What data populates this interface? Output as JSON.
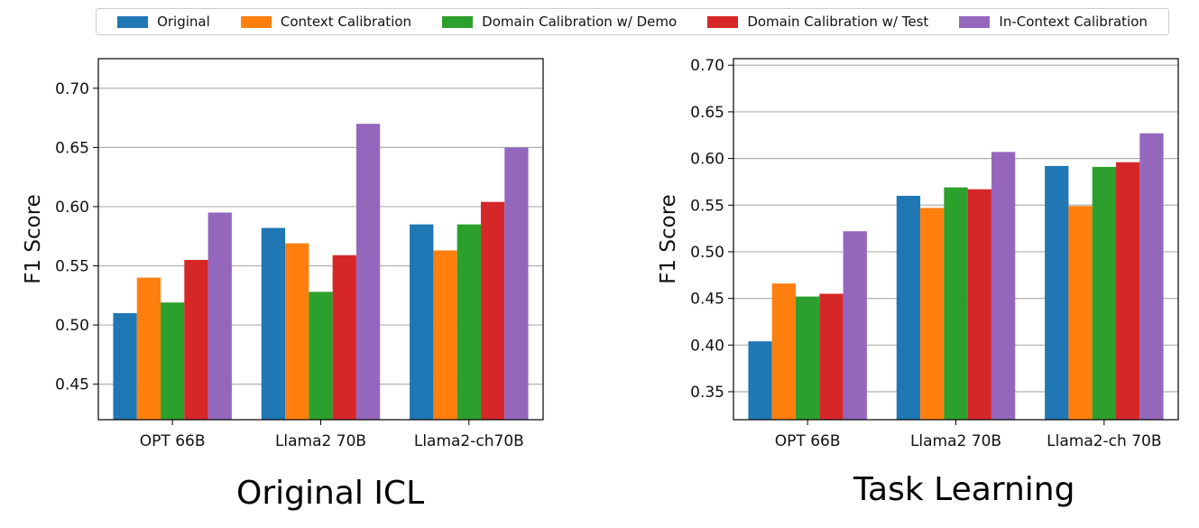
{
  "legend": {
    "items": [
      {
        "label": "Original",
        "color": "#1f77b4"
      },
      {
        "label": "Context Calibration",
        "color": "#ff7f0e"
      },
      {
        "label": "Domain Calibration w/ Demo",
        "color": "#2ca02c"
      },
      {
        "label": "Domain Calibration w/ Test",
        "color": "#d62728"
      },
      {
        "label": "In-Context Calibration",
        "color": "#9467bd"
      }
    ]
  },
  "captions": {
    "left": "Original ICL",
    "right": "Task Learning"
  },
  "chart_data": [
    {
      "type": "bar",
      "title": "",
      "xlabel": "",
      "ylabel": "F1 Score",
      "categories": [
        "OPT 66B",
        "Llama2 70B",
        "Llama2-ch70B"
      ],
      "ylim": [
        0.42,
        0.725
      ],
      "yticks": [
        "0.45",
        "0.50",
        "0.55",
        "0.60",
        "0.65",
        "0.70"
      ],
      "ytick_values": [
        0.45,
        0.5,
        0.55,
        0.6,
        0.65,
        0.7
      ],
      "grid": "y",
      "series": [
        {
          "name": "Original",
          "values": [
            0.51,
            0.582,
            0.585
          ]
        },
        {
          "name": "Context Calibration",
          "values": [
            0.54,
            0.569,
            0.563
          ]
        },
        {
          "name": "Domain Calibration w/ Demo",
          "values": [
            0.519,
            0.528,
            0.585
          ]
        },
        {
          "name": "Domain Calibration w/ Test",
          "values": [
            0.555,
            0.559,
            0.604
          ]
        },
        {
          "name": "In-Context Calibration",
          "values": [
            0.595,
            0.67,
            0.65
          ]
        }
      ]
    },
    {
      "type": "bar",
      "title": "",
      "xlabel": "",
      "ylabel": "F1 Score",
      "categories": [
        "OPT 66B",
        "Llama2 70B",
        "Llama2-ch 70B"
      ],
      "ylim": [
        0.32,
        0.707
      ],
      "yticks": [
        "0.35",
        "0.40",
        "0.45",
        "0.50",
        "0.55",
        "0.60",
        "0.65",
        "0.70"
      ],
      "ytick_values": [
        0.35,
        0.4,
        0.45,
        0.5,
        0.55,
        0.6,
        0.65,
        0.7
      ],
      "grid": "y",
      "series": [
        {
          "name": "Original",
          "values": [
            0.404,
            0.56,
            0.592
          ]
        },
        {
          "name": "Context Calibration",
          "values": [
            0.466,
            0.547,
            0.549
          ]
        },
        {
          "name": "Domain Calibration w/ Demo",
          "values": [
            0.452,
            0.569,
            0.591
          ]
        },
        {
          "name": "Domain Calibration w/ Test",
          "values": [
            0.455,
            0.567,
            0.596
          ]
        },
        {
          "name": "In-Context Calibration",
          "values": [
            0.522,
            0.607,
            0.627
          ]
        }
      ]
    }
  ]
}
